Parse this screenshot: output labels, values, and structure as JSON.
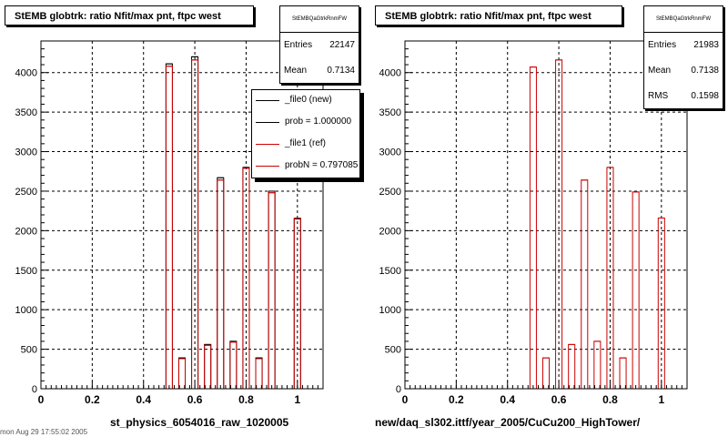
{
  "chart_data": [
    {
      "type": "bar",
      "title": "StEMB globtrk: ratio Nfit/max pnt, ftpc west",
      "xlabel": "st_physics_6054016_raw_1020005",
      "ylabel": "",
      "xlim": [
        0,
        1.1
      ],
      "ylim": [
        0,
        4400
      ],
      "x_ticks": [
        "0",
        "0.2",
        "0.4",
        "0.6",
        "0.8",
        "1"
      ],
      "y_ticks": [
        "0",
        "500",
        "1000",
        "1500",
        "2000",
        "2500",
        "3000",
        "3500",
        "4000"
      ],
      "grid": true,
      "bins": [
        0.5,
        0.55,
        0.6,
        0.65,
        0.7,
        0.75,
        0.8,
        0.85,
        0.9,
        1.0
      ],
      "series": [
        {
          "name": "_file0 (new)",
          "color": "#000000",
          "values": [
            4110,
            390,
            4200,
            560,
            2670,
            600,
            2800,
            390,
            2500,
            2150
          ]
        },
        {
          "name": "_file1 (ref)",
          "color": "#cc0000",
          "values": [
            4080,
            380,
            4160,
            550,
            2640,
            590,
            2790,
            380,
            2480,
            2160
          ]
        }
      ],
      "legend": {
        "position": "top-right",
        "entries": [
          {
            "label": "_file0 (new)",
            "color": "#000000"
          },
          {
            "label": "prob = 1.000000",
            "color": "#000000"
          },
          {
            "label": "_file1 (ref)",
            "color": "#cc0000"
          },
          {
            "label": "probN = 0.797085",
            "color": "#cc0000"
          }
        ]
      },
      "stats": {
        "name": "StEMBQaGtrkRnmFW",
        "rows": [
          {
            "label": "Entries",
            "value": "22147"
          },
          {
            "label": "Mean",
            "value": "0.7134"
          }
        ]
      }
    },
    {
      "type": "bar",
      "title": "StEMB globtrk: ratio Nfit/max pnt, ftpc west",
      "xlabel": "new/daq_sl302.ittf/year_2005/CuCu200_HighTower/",
      "ylabel": "",
      "xlim": [
        0,
        1.1
      ],
      "ylim": [
        0,
        4400
      ],
      "x_ticks": [
        "0",
        "0.2",
        "0.4",
        "0.6",
        "0.8",
        "1"
      ],
      "y_ticks": [
        "0",
        "500",
        "1000",
        "1500",
        "2000",
        "2500",
        "3000",
        "3500",
        "4000"
      ],
      "grid": true,
      "bins": [
        0.5,
        0.55,
        0.6,
        0.65,
        0.7,
        0.75,
        0.8,
        0.85,
        0.9,
        1.0
      ],
      "series": [
        {
          "name": "",
          "color": "#cc0000",
          "values": [
            4070,
            390,
            4160,
            560,
            2640,
            600,
            2800,
            390,
            2490,
            2160
          ]
        }
      ],
      "stats": {
        "name": "StEMBQaGtrkRnmFW",
        "rows": [
          {
            "label": "Entries",
            "value": "21983"
          },
          {
            "label": "Mean",
            "value": "0.7138"
          },
          {
            "label": "RMS",
            "value": "0.1598"
          }
        ]
      }
    }
  ],
  "footer": "mon Aug 29 17:55:02 2005"
}
